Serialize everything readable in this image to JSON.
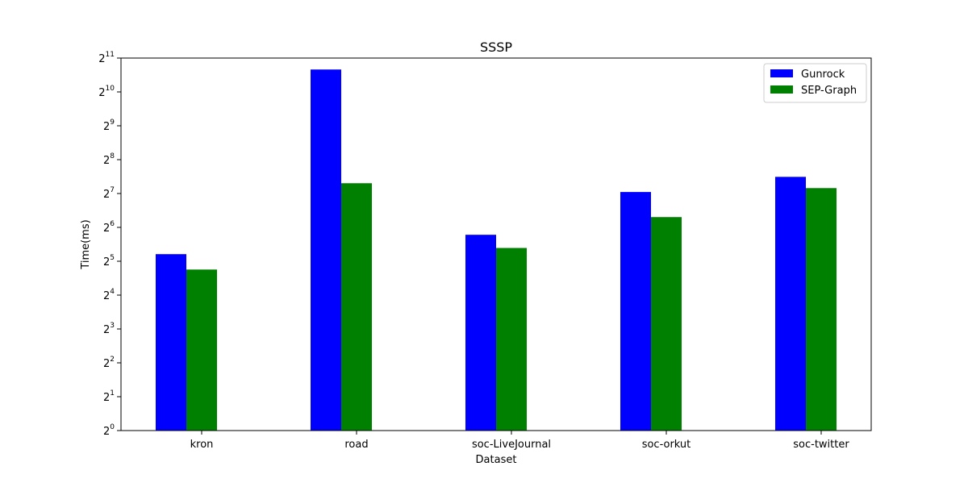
{
  "chart_data": {
    "type": "bar",
    "title": "SSSP",
    "xlabel": "Dataset",
    "ylabel": "Time(ms)",
    "yscale": "log2",
    "ylim": [
      1,
      2048
    ],
    "ytick_base": "2",
    "ytick_exponents": [
      "0",
      "1",
      "2",
      "3",
      "4",
      "5",
      "6",
      "7",
      "8",
      "9",
      "10",
      "11"
    ],
    "categories": [
      "kron",
      "road",
      "soc-LiveJournal",
      "soc-orkut",
      "soc-twitter"
    ],
    "series": [
      {
        "name": "Gunrock",
        "color": "#0000ff",
        "values": [
          37,
          1620,
          55,
          132,
          180
        ]
      },
      {
        "name": "SEP-Graph",
        "color": "#008000",
        "values": [
          27,
          158,
          42,
          79,
          143
        ]
      }
    ],
    "legend_position": "top-right",
    "grid": false
  }
}
